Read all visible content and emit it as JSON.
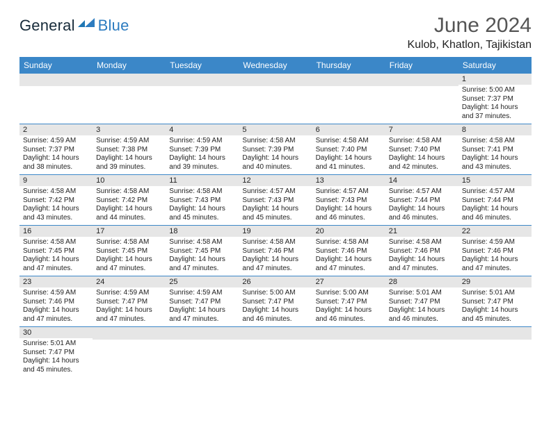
{
  "logo": {
    "general": "General",
    "blue": "Blue"
  },
  "title": "June 2024",
  "location": "Kulob, Khatlon, Tajikistan",
  "daysOfWeek": [
    "Sunday",
    "Monday",
    "Tuesday",
    "Wednesday",
    "Thursday",
    "Friday",
    "Saturday"
  ],
  "colors": {
    "headerBlue": "#3b87c8",
    "logoBlue": "#2d7cc0",
    "dayBg": "#e6e6e6"
  },
  "weeks": [
    [
      null,
      null,
      null,
      null,
      null,
      null,
      {
        "n": "1",
        "sr": "Sunrise: 5:00 AM",
        "ss": "Sunset: 7:37 PM",
        "d1": "Daylight: 14 hours",
        "d2": "and 37 minutes."
      }
    ],
    [
      {
        "n": "2",
        "sr": "Sunrise: 4:59 AM",
        "ss": "Sunset: 7:37 PM",
        "d1": "Daylight: 14 hours",
        "d2": "and 38 minutes."
      },
      {
        "n": "3",
        "sr": "Sunrise: 4:59 AM",
        "ss": "Sunset: 7:38 PM",
        "d1": "Daylight: 14 hours",
        "d2": "and 39 minutes."
      },
      {
        "n": "4",
        "sr": "Sunrise: 4:59 AM",
        "ss": "Sunset: 7:39 PM",
        "d1": "Daylight: 14 hours",
        "d2": "and 39 minutes."
      },
      {
        "n": "5",
        "sr": "Sunrise: 4:58 AM",
        "ss": "Sunset: 7:39 PM",
        "d1": "Daylight: 14 hours",
        "d2": "and 40 minutes."
      },
      {
        "n": "6",
        "sr": "Sunrise: 4:58 AM",
        "ss": "Sunset: 7:40 PM",
        "d1": "Daylight: 14 hours",
        "d2": "and 41 minutes."
      },
      {
        "n": "7",
        "sr": "Sunrise: 4:58 AM",
        "ss": "Sunset: 7:40 PM",
        "d1": "Daylight: 14 hours",
        "d2": "and 42 minutes."
      },
      {
        "n": "8",
        "sr": "Sunrise: 4:58 AM",
        "ss": "Sunset: 7:41 PM",
        "d1": "Daylight: 14 hours",
        "d2": "and 43 minutes."
      }
    ],
    [
      {
        "n": "9",
        "sr": "Sunrise: 4:58 AM",
        "ss": "Sunset: 7:42 PM",
        "d1": "Daylight: 14 hours",
        "d2": "and 43 minutes."
      },
      {
        "n": "10",
        "sr": "Sunrise: 4:58 AM",
        "ss": "Sunset: 7:42 PM",
        "d1": "Daylight: 14 hours",
        "d2": "and 44 minutes."
      },
      {
        "n": "11",
        "sr": "Sunrise: 4:58 AM",
        "ss": "Sunset: 7:43 PM",
        "d1": "Daylight: 14 hours",
        "d2": "and 45 minutes."
      },
      {
        "n": "12",
        "sr": "Sunrise: 4:57 AM",
        "ss": "Sunset: 7:43 PM",
        "d1": "Daylight: 14 hours",
        "d2": "and 45 minutes."
      },
      {
        "n": "13",
        "sr": "Sunrise: 4:57 AM",
        "ss": "Sunset: 7:43 PM",
        "d1": "Daylight: 14 hours",
        "d2": "and 46 minutes."
      },
      {
        "n": "14",
        "sr": "Sunrise: 4:57 AM",
        "ss": "Sunset: 7:44 PM",
        "d1": "Daylight: 14 hours",
        "d2": "and 46 minutes."
      },
      {
        "n": "15",
        "sr": "Sunrise: 4:57 AM",
        "ss": "Sunset: 7:44 PM",
        "d1": "Daylight: 14 hours",
        "d2": "and 46 minutes."
      }
    ],
    [
      {
        "n": "16",
        "sr": "Sunrise: 4:58 AM",
        "ss": "Sunset: 7:45 PM",
        "d1": "Daylight: 14 hours",
        "d2": "and 47 minutes."
      },
      {
        "n": "17",
        "sr": "Sunrise: 4:58 AM",
        "ss": "Sunset: 7:45 PM",
        "d1": "Daylight: 14 hours",
        "d2": "and 47 minutes."
      },
      {
        "n": "18",
        "sr": "Sunrise: 4:58 AM",
        "ss": "Sunset: 7:45 PM",
        "d1": "Daylight: 14 hours",
        "d2": "and 47 minutes."
      },
      {
        "n": "19",
        "sr": "Sunrise: 4:58 AM",
        "ss": "Sunset: 7:46 PM",
        "d1": "Daylight: 14 hours",
        "d2": "and 47 minutes."
      },
      {
        "n": "20",
        "sr": "Sunrise: 4:58 AM",
        "ss": "Sunset: 7:46 PM",
        "d1": "Daylight: 14 hours",
        "d2": "and 47 minutes."
      },
      {
        "n": "21",
        "sr": "Sunrise: 4:58 AM",
        "ss": "Sunset: 7:46 PM",
        "d1": "Daylight: 14 hours",
        "d2": "and 47 minutes."
      },
      {
        "n": "22",
        "sr": "Sunrise: 4:59 AM",
        "ss": "Sunset: 7:46 PM",
        "d1": "Daylight: 14 hours",
        "d2": "and 47 minutes."
      }
    ],
    [
      {
        "n": "23",
        "sr": "Sunrise: 4:59 AM",
        "ss": "Sunset: 7:46 PM",
        "d1": "Daylight: 14 hours",
        "d2": "and 47 minutes."
      },
      {
        "n": "24",
        "sr": "Sunrise: 4:59 AM",
        "ss": "Sunset: 7:47 PM",
        "d1": "Daylight: 14 hours",
        "d2": "and 47 minutes."
      },
      {
        "n": "25",
        "sr": "Sunrise: 4:59 AM",
        "ss": "Sunset: 7:47 PM",
        "d1": "Daylight: 14 hours",
        "d2": "and 47 minutes."
      },
      {
        "n": "26",
        "sr": "Sunrise: 5:00 AM",
        "ss": "Sunset: 7:47 PM",
        "d1": "Daylight: 14 hours",
        "d2": "and 46 minutes."
      },
      {
        "n": "27",
        "sr": "Sunrise: 5:00 AM",
        "ss": "Sunset: 7:47 PM",
        "d1": "Daylight: 14 hours",
        "d2": "and 46 minutes."
      },
      {
        "n": "28",
        "sr": "Sunrise: 5:01 AM",
        "ss": "Sunset: 7:47 PM",
        "d1": "Daylight: 14 hours",
        "d2": "and 46 minutes."
      },
      {
        "n": "29",
        "sr": "Sunrise: 5:01 AM",
        "ss": "Sunset: 7:47 PM",
        "d1": "Daylight: 14 hours",
        "d2": "and 45 minutes."
      }
    ],
    [
      {
        "n": "30",
        "sr": "Sunrise: 5:01 AM",
        "ss": "Sunset: 7:47 PM",
        "d1": "Daylight: 14 hours",
        "d2": "and 45 minutes."
      },
      null,
      null,
      null,
      null,
      null,
      null
    ]
  ]
}
